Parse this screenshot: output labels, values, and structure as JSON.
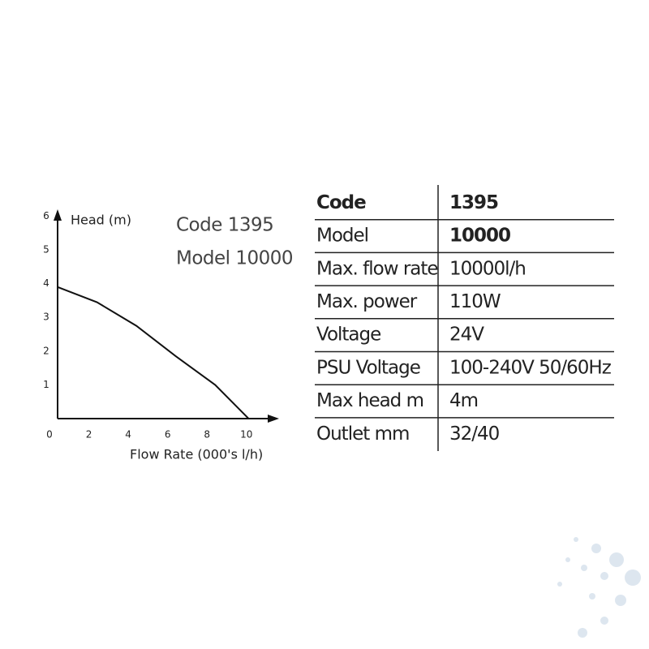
{
  "chart_data": {
    "type": "line",
    "x_label": "Flow Rate (000's l/h)",
    "y_label": "Head (m)",
    "annotations": [
      "Code 1395",
      "Model 10000"
    ],
    "x": [
      0,
      2,
      4,
      6,
      8,
      9.7
    ],
    "values": [
      3.9,
      3.45,
      2.75,
      1.85,
      1.0,
      0
    ],
    "color": "#111111",
    "xlim": [
      0,
      11
    ],
    "ylim": [
      0,
      6.3
    ],
    "xticks": [
      0,
      2,
      4,
      6,
      8,
      10
    ],
    "yticks": [
      1,
      2,
      3,
      4,
      5,
      6
    ]
  },
  "table": {
    "rows": [
      [
        "Code",
        "1395"
      ],
      [
        "Model",
        "10000"
      ],
      [
        "Max. flow rate",
        "10000l/h"
      ],
      [
        "Max. power",
        "110W"
      ],
      [
        "Voltage",
        "24V"
      ],
      [
        "PSU Voltage",
        "100-240V 50/60Hz"
      ],
      [
        "Max head m",
        "4m"
      ],
      [
        "Outlet mm",
        "32/40"
      ]
    ]
  }
}
